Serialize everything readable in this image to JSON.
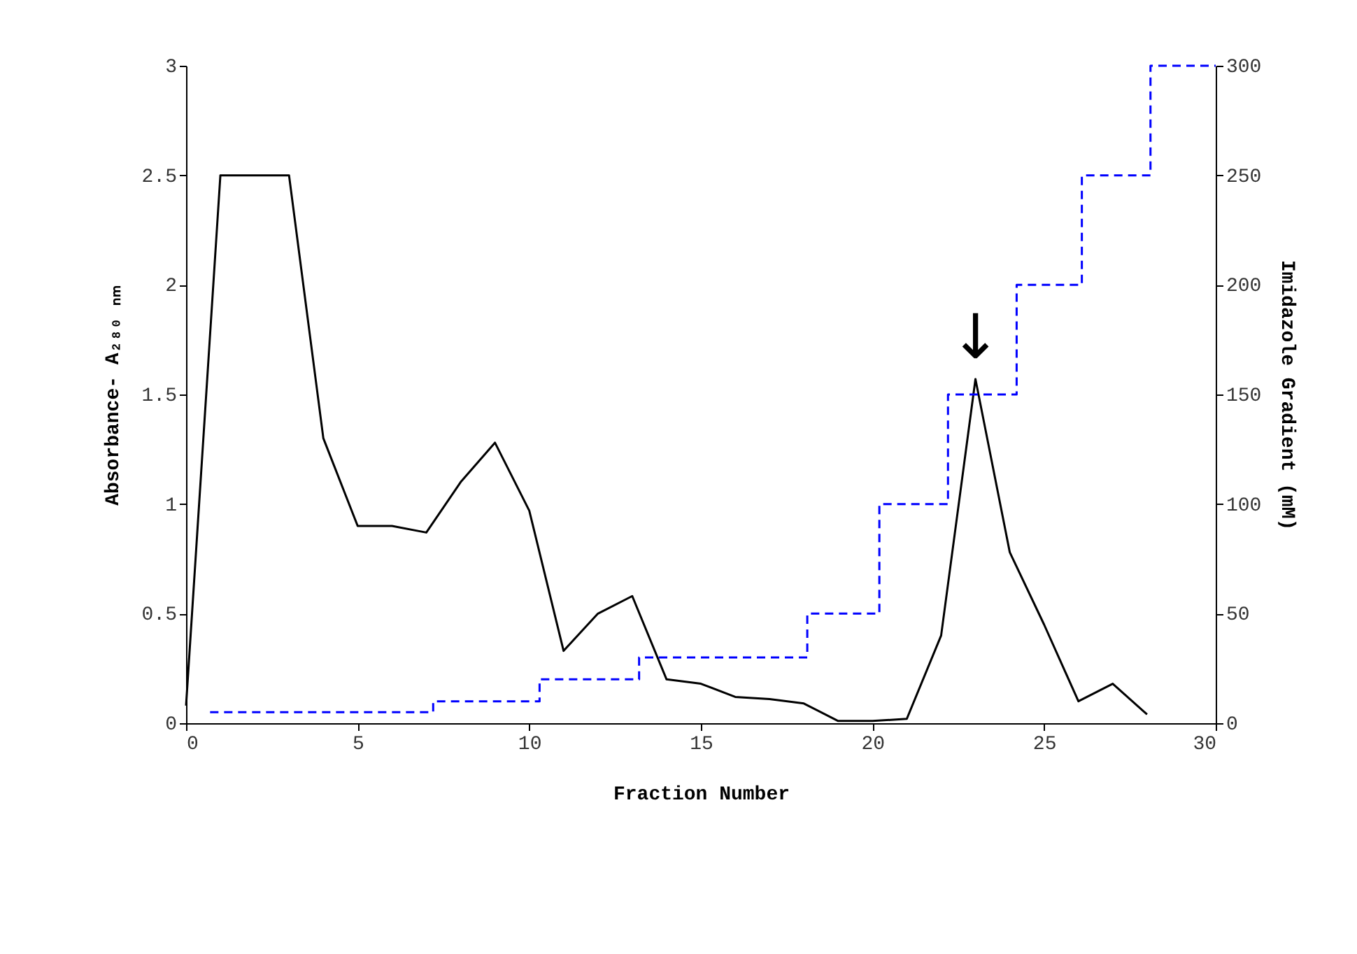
{
  "chart_data": {
    "type": "line",
    "xlabel": "Fraction Number",
    "ylabel": "Absorbance- A₂₈₀ ₙₘ",
    "y2label": "Imidazole Gradient (mM)",
    "xlim": [
      0,
      30
    ],
    "xticks": [
      0,
      5,
      10,
      15,
      20,
      25,
      30
    ],
    "ylim": [
      0,
      3
    ],
    "yticks": [
      {
        "value": 0,
        "label": "0"
      },
      0.5,
      {
        "value": 1,
        "label": "1"
      },
      1.5,
      {
        "value": 2,
        "label": "2"
      },
      2.5,
      {
        "value": 3,
        "label": "3"
      }
    ],
    "y2lim": [
      0,
      300
    ],
    "y2ticks": [
      0,
      50,
      100,
      150,
      200,
      250,
      300
    ],
    "grid": false,
    "series": [
      {
        "color": "#000000",
        "line_style": "solid",
        "x": [
          0,
          1,
          2,
          3,
          4,
          5,
          6,
          7,
          8,
          9,
          10,
          11,
          12,
          13,
          14,
          15,
          16,
          17,
          18,
          19,
          20,
          21,
          22,
          23,
          24,
          25,
          26,
          27,
          28
        ],
        "values": [
          0.08,
          2.5,
          2.5,
          2.5,
          1.3,
          0.9,
          0.9,
          0.87,
          1.1,
          1.28,
          0.97,
          0.33,
          0.5,
          0.58,
          0.2,
          0.18,
          0.12,
          0.11,
          0.09,
          0.01,
          0.01,
          0.02,
          0.4,
          1.57,
          0.78,
          0.45,
          0.1,
          0.18,
          0.04
        ]
      },
      {
        "type": "step",
        "axis": "y2",
        "color": "#0000ff",
        "line_style": "dashed",
        "x": [
          0.7,
          7.2,
          10.3,
          13.2,
          18.1,
          20.2,
          22.2,
          24.2,
          26.1,
          28.1,
          30
        ],
        "values": [
          5,
          10,
          20,
          30,
          50,
          100,
          150,
          200,
          250,
          300,
          300
        ]
      }
    ],
    "annotations": [
      {
        "text": "↓",
        "x": 23,
        "y": 1.57
      }
    ]
  }
}
